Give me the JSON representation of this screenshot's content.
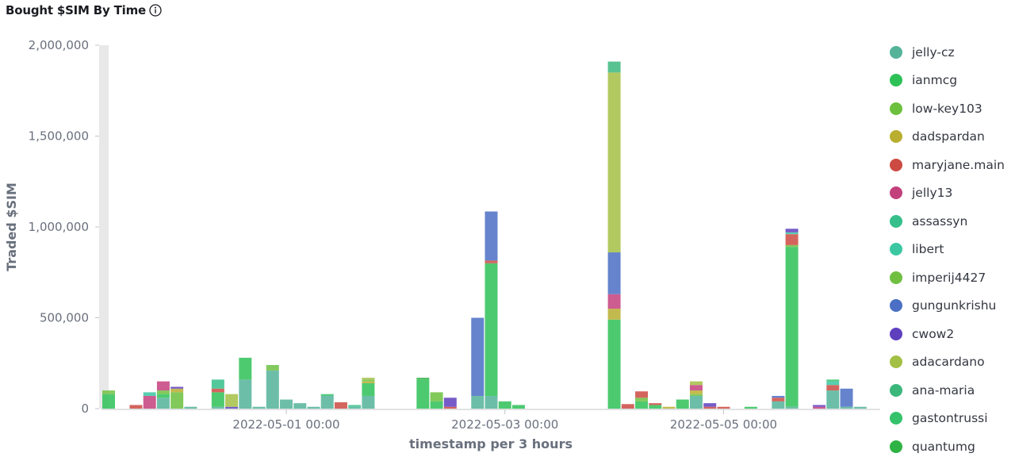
{
  "title": "Bought $SIM By Time",
  "info_icon": "info-circle-icon",
  "chart_data": {
    "type": "bar",
    "stacked": true,
    "title": "Bought $SIM By Time",
    "xlabel": "timestamp per 3 hours",
    "ylabel": "Traded $SIM",
    "ylim": [
      0,
      2000000
    ],
    "yticks": [
      0,
      500000,
      1000000,
      1500000,
      2000000
    ],
    "ytick_labels": [
      "0",
      "500,000",
      "1,000,000",
      "1,500,000",
      "2,000,000"
    ],
    "xlim": [
      "2022-04-29 09:00",
      "2022-05-06 09:00"
    ],
    "xticks": [
      "2022-05-01 00:00",
      "2022-05-03 00:00",
      "2022-05-05 00:00"
    ],
    "interval": "3h",
    "grid": false,
    "legend_position": "right",
    "series": [
      {
        "name": "jelly-cz",
        "color": "#54B399",
        "points": [
          [
            "2022-04-29 21:00",
            60000
          ],
          [
            "2022-04-30 03:00",
            10000
          ],
          [
            "2022-04-30 09:00",
            10000
          ],
          [
            "2022-04-30 15:00",
            160000
          ],
          [
            "2022-04-30 18:00",
            10000
          ],
          [
            "2022-04-30 21:00",
            210000
          ],
          [
            "2022-05-01 00:00",
            50000
          ],
          [
            "2022-05-01 03:00",
            30000
          ],
          [
            "2022-05-01 06:00",
            10000
          ],
          [
            "2022-05-01 09:00",
            70000
          ],
          [
            "2022-05-01 15:00",
            10000
          ],
          [
            "2022-05-01 18:00",
            70000
          ],
          [
            "2022-05-02 18:00",
            70000
          ],
          [
            "2022-05-02 21:00",
            70000
          ],
          [
            "2022-05-04 18:00",
            70000
          ],
          [
            "2022-05-05 12:00",
            40000
          ],
          [
            "2022-05-05 15:00",
            10000
          ],
          [
            "2022-05-06 00:00",
            100000
          ],
          [
            "2022-05-06 03:00",
            10000
          ],
          [
            "2022-05-06 06:00",
            10000
          ]
        ]
      },
      {
        "name": "ianmcg",
        "color": "#2EC157",
        "points": [
          [
            "2022-04-29 09:00",
            80000
          ],
          [
            "2022-04-29 21:00",
            20000
          ],
          [
            "2022-04-30 09:00",
            80000
          ],
          [
            "2022-04-30 15:00",
            120000
          ],
          [
            "2022-05-01 18:00",
            70000
          ],
          [
            "2022-05-02 06:00",
            160000
          ],
          [
            "2022-05-02 09:00",
            40000
          ],
          [
            "2022-05-02 21:00",
            730000
          ],
          [
            "2022-05-03 00:00",
            40000
          ],
          [
            "2022-05-03 03:00",
            20000
          ],
          [
            "2022-05-04 00:00",
            490000
          ],
          [
            "2022-05-04 06:00",
            40000
          ],
          [
            "2022-05-04 09:00",
            20000
          ],
          [
            "2022-05-04 15:00",
            50000
          ],
          [
            "2022-05-05 06:00",
            10000
          ],
          [
            "2022-05-05 15:00",
            880000
          ]
        ]
      },
      {
        "name": "low-key103",
        "color": "#6CC03E",
        "points": [
          [
            "2022-04-29 09:00",
            10000
          ],
          [
            "2022-04-29 21:00",
            20000
          ],
          [
            "2022-04-30 00:00",
            90000
          ],
          [
            "2022-04-30 21:00",
            30000
          ],
          [
            "2022-05-02 09:00",
            50000
          ],
          [
            "2022-05-04 06:00",
            20000
          ],
          [
            "2022-05-04 18:00",
            10000
          ],
          [
            "2022-05-05 15:00",
            10000
          ]
        ]
      },
      {
        "name": "dadspardan",
        "color": "#B9AE30",
        "points": [
          [
            "2022-04-30 00:00",
            20000
          ],
          [
            "2022-05-01 18:00",
            10000
          ],
          [
            "2022-05-04 00:00",
            60000
          ],
          [
            "2022-05-04 12:00",
            10000
          ],
          [
            "2022-05-04 18:00",
            20000
          ]
        ]
      },
      {
        "name": "maryjane.main",
        "color": "#CC4A42",
        "points": [
          [
            "2022-04-29 15:00",
            20000
          ],
          [
            "2022-04-30 09:00",
            20000
          ],
          [
            "2022-05-01 12:00",
            35000
          ],
          [
            "2022-05-02 12:00",
            10000
          ],
          [
            "2022-05-02 21:00",
            15000
          ],
          [
            "2022-05-04 03:00",
            25000
          ],
          [
            "2022-05-04 06:00",
            35000
          ],
          [
            "2022-05-04 09:00",
            10000
          ],
          [
            "2022-05-04 21:00",
            10000
          ],
          [
            "2022-05-05 00:00",
            10000
          ],
          [
            "2022-05-05 12:00",
            20000
          ],
          [
            "2022-05-05 15:00",
            60000
          ],
          [
            "2022-05-06 00:00",
            30000
          ]
        ]
      },
      {
        "name": "jelly13",
        "color": "#C4407C",
        "points": [
          [
            "2022-04-29 18:00",
            70000
          ],
          [
            "2022-04-29 21:00",
            50000
          ],
          [
            "2022-05-04 00:00",
            80000
          ],
          [
            "2022-05-04 18:00",
            30000
          ],
          [
            "2022-05-05 21:00",
            10000
          ]
        ]
      },
      {
        "name": "assassyn",
        "color": "#35BF8A",
        "points": [
          [
            "2022-04-30 09:00",
            50000
          ],
          [
            "2022-05-01 15:00",
            10000
          ]
        ]
      },
      {
        "name": "libert",
        "color": "#3BC7A2",
        "points": [
          [
            "2022-04-29 18:00",
            20000
          ],
          [
            "2022-05-05 15:00",
            10000
          ],
          [
            "2022-05-06 00:00",
            20000
          ]
        ]
      },
      {
        "name": "imperij4427",
        "color": "#70BF41",
        "points": [
          [
            "2022-04-29 09:00",
            10000
          ],
          [
            "2022-05-01 18:00",
            10000
          ]
        ]
      },
      {
        "name": "gungunkrishu",
        "color": "#4A6FC4",
        "points": [
          [
            "2022-05-02 18:00",
            430000
          ],
          [
            "2022-05-02 21:00",
            270000
          ],
          [
            "2022-05-04 00:00",
            230000
          ],
          [
            "2022-05-05 12:00",
            10000
          ],
          [
            "2022-05-06 03:00",
            100000
          ]
        ]
      },
      {
        "name": "cwow2",
        "color": "#5E3FBE",
        "points": [
          [
            "2022-04-30 00:00",
            10000
          ],
          [
            "2022-04-30 12:00",
            10000
          ],
          [
            "2022-05-02 12:00",
            50000
          ],
          [
            "2022-05-04 21:00",
            20000
          ],
          [
            "2022-05-05 15:00",
            20000
          ],
          [
            "2022-05-05 21:00",
            10000
          ]
        ]
      },
      {
        "name": "adacardano",
        "color": "#A3C044",
        "points": [
          [
            "2022-04-30 12:00",
            70000
          ],
          [
            "2022-05-01 18:00",
            10000
          ],
          [
            "2022-05-04 00:00",
            990000
          ],
          [
            "2022-05-04 18:00",
            20000
          ]
        ]
      },
      {
        "name": "ana-maria",
        "color": "#3BB77C",
        "points": [
          [
            "2022-05-04 00:00",
            60000
          ]
        ]
      },
      {
        "name": "gastontrussi",
        "color": "#34C26B",
        "points": [
          [
            "2022-05-01 09:00",
            10000
          ],
          [
            "2022-05-06 00:00",
            10000
          ]
        ]
      },
      {
        "name": "quantumg",
        "color": "#2FB344",
        "points": [
          [
            "2022-05-02 06:00",
            10000
          ]
        ]
      }
    ]
  }
}
